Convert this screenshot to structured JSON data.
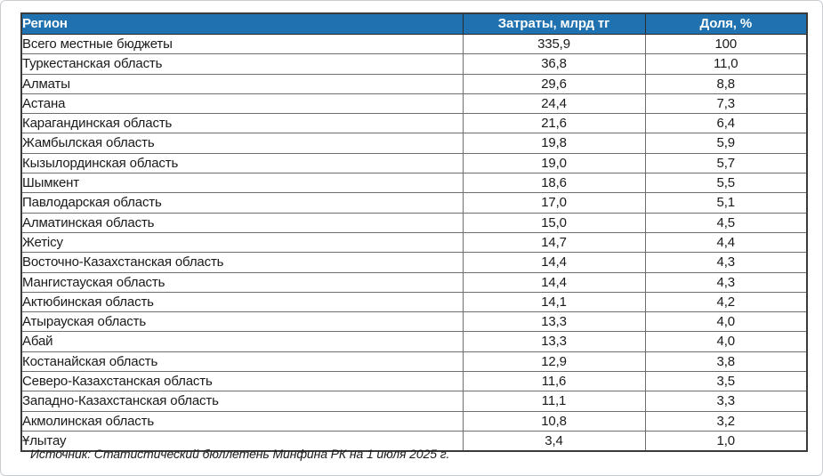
{
  "chart_data": {
    "type": "table",
    "columns": [
      "Регион",
      "Затраты, млрд тг",
      "Доля, %"
    ],
    "rows": [
      {
        "region": "Всего местные бюджеты",
        "spend_bln_tenge": "335,9",
        "share_pct": "100"
      },
      {
        "region": "Туркестанская область",
        "spend_bln_tenge": "36,8",
        "share_pct": "11,0"
      },
      {
        "region": "Алматы",
        "spend_bln_tenge": "29,6",
        "share_pct": "8,8"
      },
      {
        "region": "Астана",
        "spend_bln_tenge": "24,4",
        "share_pct": "7,3"
      },
      {
        "region": "Карагандинская область",
        "spend_bln_tenge": "21,6",
        "share_pct": "6,4"
      },
      {
        "region": "Жамбылская область",
        "spend_bln_tenge": "19,8",
        "share_pct": "5,9"
      },
      {
        "region": "Кызылординская область",
        "spend_bln_tenge": "19,0",
        "share_pct": "5,7"
      },
      {
        "region": "Шымкент",
        "spend_bln_tenge": "18,6",
        "share_pct": "5,5"
      },
      {
        "region": "Павлодарская область",
        "spend_bln_tenge": "17,0",
        "share_pct": "5,1"
      },
      {
        "region": "Алматинская область",
        "spend_bln_tenge": "15,0",
        "share_pct": "4,5"
      },
      {
        "region": "Жетісу",
        "spend_bln_tenge": "14,7",
        "share_pct": "4,4"
      },
      {
        "region": "Восточно-Казахстанская область",
        "spend_bln_tenge": "14,4",
        "share_pct": "4,3"
      },
      {
        "region": "Мангистауская область",
        "spend_bln_tenge": "14,4",
        "share_pct": "4,3"
      },
      {
        "region": "Актюбинская область",
        "spend_bln_tenge": "14,1",
        "share_pct": "4,2"
      },
      {
        "region": "Атырауская область",
        "spend_bln_tenge": "13,3",
        "share_pct": "4,0"
      },
      {
        "region": "Абай",
        "spend_bln_tenge": "13,3",
        "share_pct": "4,0"
      },
      {
        "region": "Костанайская область",
        "spend_bln_tenge": "12,9",
        "share_pct": "3,8"
      },
      {
        "region": "Северо-Казахстанская область",
        "spend_bln_tenge": "11,6",
        "share_pct": "3,5"
      },
      {
        "region": "Западно-Казахстанская область",
        "spend_bln_tenge": "11,1",
        "share_pct": "3,3"
      },
      {
        "region": "Акмолинская область",
        "spend_bln_tenge": "10,8",
        "share_pct": "3,2"
      },
      {
        "region": "Ұлытау",
        "spend_bln_tenge": "3,4",
        "share_pct": "1,0"
      }
    ],
    "title": "",
    "layout": {
      "header_position": "top",
      "grid": true
    }
  },
  "source_note": "Источник: Статистический бюллетень Минфина РК на 1 июля 2025 г.",
  "colors": {
    "header_bg": "#1f72af",
    "header_text": "#ffffff",
    "body_text": "#1a1a1a",
    "grid_line": "#6e6e6e",
    "outer_border": "#3a3a3a"
  }
}
